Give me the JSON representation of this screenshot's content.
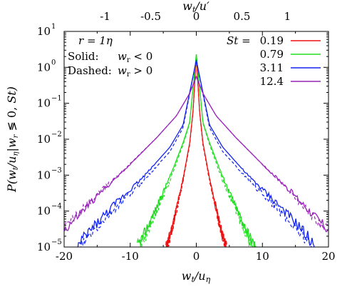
{
  "chart_data": {
    "type": "line",
    "title": "",
    "xlabel": "w_t / u_η",
    "ylabel": "P(w_t/u_η | w_r ≶ 0, St)",
    "x2label": "w_t / u′",
    "xlim": [
      -20,
      20
    ],
    "x2lim": [
      -1.45,
      1.45
    ],
    "ylim": [
      1e-05,
      10
    ],
    "yscale": "log",
    "grid": false,
    "legend_position": "top-right",
    "x_ticks": [
      {
        "value": -20,
        "label": "-20"
      },
      {
        "value": -10,
        "label": "-10"
      },
      {
        "value": 0,
        "label": "0"
      },
      {
        "value": 10,
        "label": "10"
      },
      {
        "value": 20,
        "label": "20"
      }
    ],
    "x2_ticks": [
      {
        "value": -1,
        "label": "-1"
      },
      {
        "value": -0.5,
        "label": "-0.5"
      },
      {
        "value": 0,
        "label": "0"
      },
      {
        "value": 0.5,
        "label": "0.5"
      },
      {
        "value": 1,
        "label": "1"
      }
    ],
    "y_ticks": [
      {
        "value": 10,
        "label": "10",
        "exp": "1"
      },
      {
        "value": 1,
        "label": "10",
        "exp": "0"
      },
      {
        "value": 0.1,
        "label": "10",
        "exp": "−1"
      },
      {
        "value": 0.01,
        "label": "10",
        "exp": "−2"
      },
      {
        "value": 0.001,
        "label": "10",
        "exp": "−3"
      },
      {
        "value": 0.0001,
        "label": "10",
        "exp": "−4"
      },
      {
        "value": 1e-05,
        "label": "10",
        "exp": "−5"
      }
    ],
    "annotations": {
      "r": "r = 1η",
      "solid": "Solid:",
      "solid_cond": "w_r < 0",
      "dashed": "Dashed:",
      "dashed_cond": "w_r > 0"
    },
    "legend_title": "St =",
    "series": [
      {
        "name": "0.19",
        "color": "#ee1111",
        "peak": 2.1,
        "solid": {
          "x": [
            -4.6,
            -4,
            -3,
            -2,
            -1,
            -0.5,
            0,
            0.5,
            1,
            2,
            3,
            4,
            4.6
          ],
          "y": [
            1e-05,
            2e-05,
            0.00012,
            0.0008,
            0.008,
            0.06,
            2.1,
            0.06,
            0.008,
            0.0008,
            0.00012,
            2e-05,
            1e-05
          ]
        },
        "dashed": {
          "x": [
            -4.4,
            -4,
            -3,
            -2,
            -1,
            -0.5,
            0,
            0.5,
            1,
            2,
            3,
            4,
            4.4
          ],
          "y": [
            1e-05,
            1.8e-05,
            0.0001,
            0.0007,
            0.007,
            0.055,
            2.1,
            0.055,
            0.007,
            0.0007,
            0.0001,
            1.8e-05,
            1e-05
          ]
        }
      },
      {
        "name": "0.79",
        "color": "#22dd22",
        "peak": 2.3,
        "solid": {
          "x": [
            -9,
            -8,
            -6,
            -4,
            -2,
            -1,
            0,
            1,
            2,
            4,
            6,
            8,
            9
          ],
          "y": [
            1e-05,
            2e-05,
            0.00013,
            0.0009,
            0.008,
            0.03,
            2.3,
            0.03,
            0.008,
            0.0009,
            0.00013,
            2e-05,
            1e-05
          ]
        },
        "dashed": {
          "x": [
            -8.5,
            -8,
            -6,
            -4,
            -2,
            -1,
            0,
            1,
            2,
            4,
            6,
            8,
            8.5
          ],
          "y": [
            1e-05,
            1.5e-05,
            0.0001,
            0.0007,
            0.007,
            0.028,
            2.3,
            0.028,
            0.007,
            0.0007,
            0.0001,
            1.5e-05,
            1e-05
          ]
        }
      },
      {
        "name": "3.11",
        "color": "#1122ee",
        "peak": 1.6,
        "solid": {
          "x": [
            -18,
            -16,
            -12,
            -8,
            -4,
            -2,
            0,
            2,
            4,
            8,
            12,
            16,
            18
          ],
          "y": [
            1e-05,
            3e-05,
            0.00018,
            0.0009,
            0.006,
            0.025,
            1.6,
            0.025,
            0.006,
            0.0009,
            0.00018,
            3e-05,
            1e-05
          ]
        },
        "dashed": {
          "x": [
            -17.5,
            -16,
            -12,
            -8,
            -4,
            -2,
            0,
            2,
            4,
            8,
            12,
            16,
            17.5
          ],
          "y": [
            1e-05,
            2.2e-05,
            0.00013,
            0.0007,
            0.0045,
            0.021,
            1.6,
            0.021,
            0.0045,
            0.0007,
            0.00013,
            2.2e-05,
            1e-05
          ]
        }
      },
      {
        "name": "12.4",
        "color": "#9922bb",
        "peak": 0.55,
        "solid": {
          "x": [
            -20,
            -18,
            -14,
            -10,
            -6,
            -3,
            -1,
            0,
            1,
            3,
            6,
            10,
            14,
            18,
            20
          ],
          "y": [
            3e-05,
            7e-05,
            0.0004,
            0.002,
            0.011,
            0.045,
            0.19,
            0.55,
            0.19,
            0.045,
            0.011,
            0.002,
            0.0004,
            7e-05,
            3e-05
          ]
        },
        "dashed": {
          "x": [
            -20,
            -18,
            -14,
            -10,
            -6,
            -3,
            -1,
            0,
            1,
            3,
            6,
            10,
            14,
            18,
            20
          ],
          "y": [
            3.5e-05,
            8e-05,
            0.00042,
            0.0021,
            0.011,
            0.045,
            0.19,
            0.55,
            0.19,
            0.045,
            0.011,
            0.002,
            0.00038,
            6e-05,
            2.8e-05
          ]
        }
      }
    ]
  }
}
